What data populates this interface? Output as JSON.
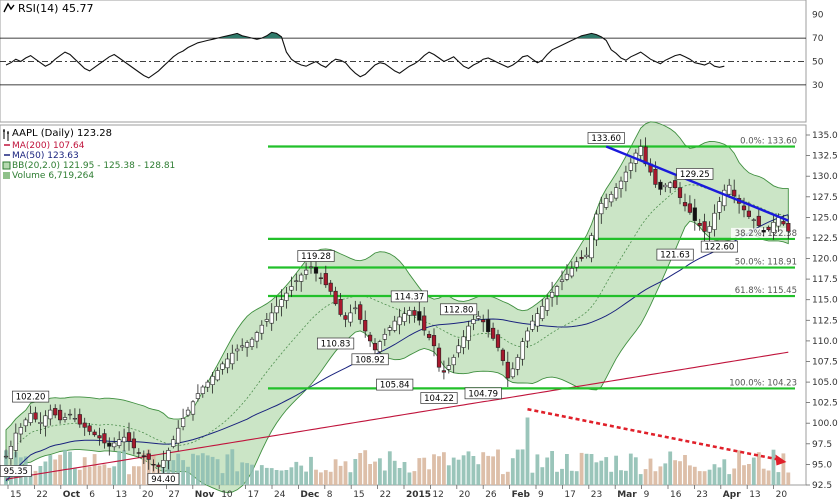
{
  "chart_data": {
    "type": "candlestick",
    "rsi": {
      "title": "RSI(14) 45.77",
      "ticks": [
        30,
        50,
        70,
        90
      ],
      "ylim": [
        0,
        100
      ],
      "series": [
        47,
        49,
        52,
        50,
        53,
        55,
        52,
        49,
        46,
        48,
        52,
        55,
        58,
        56,
        52,
        48,
        44,
        42,
        45,
        48,
        51,
        54,
        56,
        53,
        50,
        47,
        44,
        41,
        38,
        36,
        39,
        42,
        46,
        50,
        54,
        57,
        59,
        62,
        64,
        66,
        67,
        68,
        69,
        70,
        71,
        72,
        73,
        74,
        72,
        71,
        70,
        69,
        70,
        72,
        75,
        74,
        71,
        58,
        52,
        49,
        47,
        46,
        48,
        50,
        47,
        45,
        49,
        52,
        51,
        49,
        44,
        40,
        37,
        39,
        43,
        47,
        49,
        48,
        45,
        42,
        40,
        43,
        46,
        48,
        51,
        55,
        58,
        56,
        53,
        50,
        52,
        54,
        50,
        46,
        44,
        47,
        49,
        52,
        53,
        51,
        49,
        47,
        45,
        47,
        50,
        54,
        55,
        52,
        49,
        51,
        56,
        60,
        62,
        64,
        66,
        68,
        70,
        72,
        73,
        74,
        73,
        71,
        68,
        60,
        57,
        53,
        51,
        54,
        56,
        58,
        55,
        52,
        50,
        48,
        51,
        53,
        55,
        56,
        54,
        52,
        49,
        48,
        47,
        49,
        46,
        45,
        46
      ]
    },
    "legend": {
      "title": "AAPL (Daily) 123.28",
      "items": [
        {
          "label": "MA(200) 107.64",
          "color": "#c0143c"
        },
        {
          "label": "MA(50) 123.63",
          "color": "#1a237e"
        },
        {
          "label": "BB(20,2.0) 121.95 - 125.38 - 128.81",
          "color": "#2e7d32"
        },
        {
          "label": "Volume 6,719,264",
          "color": "#2e7d32"
        }
      ]
    },
    "price_axis": {
      "ylim": [
        92.5,
        135.0
      ],
      "ticks": [
        "135.0",
        "132.5",
        "130.0",
        "127.5",
        "125.0",
        "122.5",
        "120.0",
        "117.5",
        "115.0",
        "112.5",
        "110.0",
        "107.5",
        "105.0",
        "102.5",
        "100.0",
        "97.5",
        "95.0",
        "92.5"
      ]
    },
    "x_axis": {
      "labels": [
        "15",
        "22",
        "Oct",
        "6",
        "13",
        "20",
        "27",
        "Nov",
        "10",
        "17",
        "24",
        "Dec",
        "8",
        "15",
        "22",
        "2015",
        "12",
        "20",
        "26",
        "Feb",
        "9",
        "17",
        "23",
        "Mar",
        "9",
        "16",
        "23",
        "Apr",
        "13",
        "20"
      ]
    },
    "fib_levels": [
      {
        "label": "0.0%: 133.60",
        "value": 133.6
      },
      {
        "label": "38.2%: 122.38",
        "value": 122.38
      },
      {
        "label": "50.0%: 118.91",
        "value": 118.91
      },
      {
        "label": "61.8%: 115.45",
        "value": 115.45
      },
      {
        "label": "100.0%: 104.23",
        "value": 104.23
      }
    ],
    "callouts": [
      {
        "label": "102.20",
        "day": 5,
        "value": 102.2
      },
      {
        "label": "95.35",
        "day": 2,
        "value": 95.35
      },
      {
        "label": "94.40",
        "day": 32,
        "value": 94.4
      },
      {
        "label": "119.28",
        "day": 63,
        "value": 119.28
      },
      {
        "label": "110.83",
        "day": 67,
        "value": 110.83
      },
      {
        "label": "108.92",
        "day": 74,
        "value": 108.92
      },
      {
        "label": "114.37",
        "day": 82,
        "value": 114.37
      },
      {
        "label": "105.84",
        "day": 79,
        "value": 105.84
      },
      {
        "label": "112.80",
        "day": 92,
        "value": 112.8
      },
      {
        "label": "104.22",
        "day": 88,
        "value": 104.22
      },
      {
        "label": "104.79",
        "day": 97,
        "value": 104.79
      },
      {
        "label": "133.60",
        "day": 122,
        "value": 133.6
      },
      {
        "label": "129.25",
        "day": 140,
        "value": 129.25
      },
      {
        "label": "121.63",
        "day": 136,
        "value": 121.63
      },
      {
        "label": "122.60",
        "day": 145,
        "value": 122.6
      }
    ],
    "trendline": {
      "from": [
        122,
        133.6
      ],
      "to": [
        159,
        124.6
      ]
    },
    "volume_trend": {
      "from": [
        106,
        101.7
      ],
      "to": [
        157,
        95.6
      ]
    },
    "closes": [
      96.0,
      97.2,
      98.8,
      99.5,
      100.4,
      101.2,
      100.5,
      100.1,
      100.9,
      101.6,
      101.0,
      100.4,
      100.7,
      101.1,
      100.6,
      99.9,
      99.5,
      99.0,
      98.6,
      98.2,
      97.6,
      97.2,
      97.6,
      98.0,
      98.3,
      97.8,
      97.0,
      96.4,
      96.0,
      95.6,
      95.0,
      94.7,
      95.5,
      96.7,
      98.0,
      99.4,
      100.6,
      101.6,
      102.6,
      103.6,
      104.4,
      105.0,
      105.7,
      106.4,
      107.2,
      107.8,
      108.5,
      109.0,
      109.4,
      109.8,
      110.2,
      111.0,
      111.9,
      112.6,
      113.4,
      114.2,
      115.0,
      115.8,
      116.6,
      117.3,
      118.0,
      118.6,
      119.0,
      118.2,
      117.6,
      116.8,
      116.0,
      114.5,
      113.2,
      112.6,
      113.4,
      114.0,
      112.6,
      111.2,
      110.0,
      108.9,
      109.9,
      110.8,
      111.6,
      112.4,
      112.9,
      113.3,
      113.7,
      113.1,
      112.5,
      111.3,
      110.4,
      109.4,
      106.8,
      106.2,
      107.0,
      108.0,
      109.4,
      110.5,
      111.8,
      112.6,
      113.0,
      112.3,
      111.1,
      110.3,
      109.2,
      107.6,
      105.5,
      106.6,
      108.0,
      109.9,
      111.2,
      112.4,
      113.3,
      114.2,
      115.1,
      115.9,
      116.6,
      117.4,
      118.1,
      118.8,
      119.6,
      120.0,
      120.4,
      122.8,
      125.4,
      126.7,
      127.3,
      127.8,
      128.6,
      129.4,
      130.5,
      131.6,
      132.8,
      133.6,
      131.5,
      130.5,
      129.0,
      128.4,
      128.9,
      129.2,
      128.6,
      127.4,
      126.4,
      125.6,
      124.6,
      124.0,
      123.3,
      123.9,
      125.5,
      126.9,
      128.3,
      128.9,
      127.6,
      126.7,
      125.9,
      125.1,
      124.7,
      124.0,
      123.2,
      123.5,
      124.4,
      125.0,
      124.2,
      123.3
    ]
  }
}
